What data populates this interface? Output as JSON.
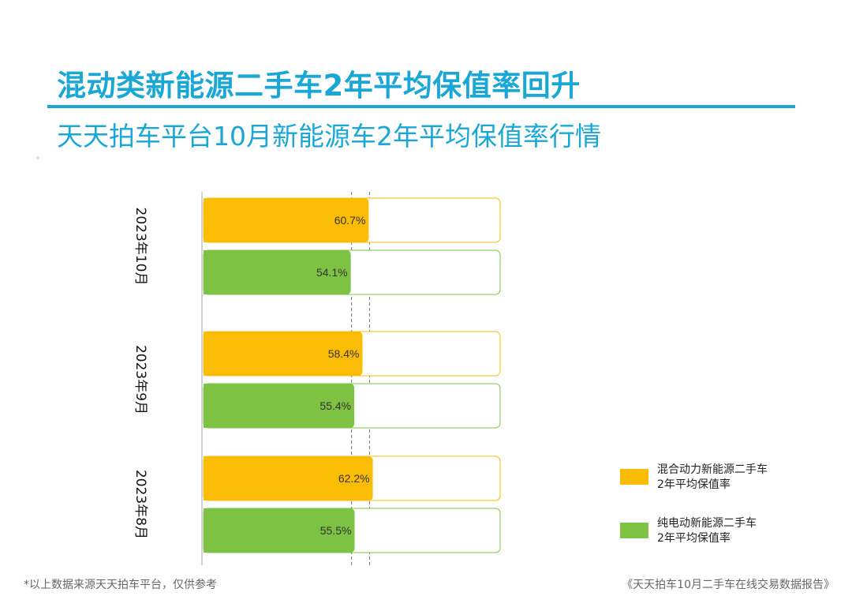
{
  "header": {
    "title": "混动类新能源二手车2年平均保值率回升",
    "subtitle": "天天拍车平台10月新能源车2年平均保值率行情"
  },
  "chart_data": {
    "type": "bar",
    "orientation": "horizontal",
    "categories": [
      "2023年10月",
      "2023年9月",
      "2023年8月"
    ],
    "series": [
      {
        "name": "混合动力新能源二手车2年平均保值率",
        "values": [
          60.7,
          58.4,
          62.2
        ],
        "labels": [
          "60.7%",
          "58.4%",
          "62.2%"
        ],
        "color": "#fbbc05"
      },
      {
        "name": "纯电动新能源二手车2年平均保值率",
        "values": [
          54.1,
          55.4,
          55.5
        ],
        "labels": [
          "54.1%",
          "55.4%",
          "55.5%"
        ],
        "color": "#7dc242"
      }
    ],
    "xlim": [
      0,
      100
    ],
    "unit": "%",
    "reference_lines": [
      54.1,
      60.7
    ],
    "legend": {
      "position": "bottom-right",
      "entries": [
        {
          "line1": "混合动力新能源二手车",
          "line2": "2年平均保值率",
          "color": "#fbbc05"
        },
        {
          "line1": "纯电动新能源二手车",
          "line2": "2年平均保值率",
          "color": "#7dc242"
        }
      ]
    }
  },
  "footer": {
    "note": "*以上数据来源天天拍车平台，仅供参考",
    "source": "《天天拍车10月二手车在线交易数据报告》"
  }
}
